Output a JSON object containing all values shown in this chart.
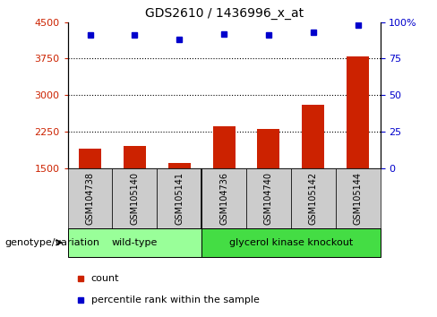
{
  "title": "GDS2610 / 1436996_x_at",
  "samples": [
    "GSM104738",
    "GSM105140",
    "GSM105141",
    "GSM104736",
    "GSM104740",
    "GSM105142",
    "GSM105144"
  ],
  "counts": [
    1900,
    1950,
    1600,
    2350,
    2300,
    2800,
    3800
  ],
  "percentiles": [
    91,
    91,
    88,
    92,
    91,
    93,
    98
  ],
  "ylim_left": [
    1500,
    4500
  ],
  "ylim_right": [
    0,
    100
  ],
  "yticks_left": [
    1500,
    2250,
    3000,
    3750,
    4500
  ],
  "yticks_right": [
    0,
    25,
    50,
    75,
    100
  ],
  "bar_color": "#cc2200",
  "dot_color": "#0000cc",
  "bg_color": "#ffffff",
  "label_box_color": "#cccccc",
  "wt_group_count": 3,
  "ko_group_count": 4,
  "wt_label": "wild-type",
  "ko_label": "glycerol kinase knockout",
  "wt_color": "#99ff99",
  "ko_color": "#44dd44",
  "legend_count_label": "count",
  "legend_pct_label": "percentile rank within the sample",
  "genotype_label": "genotype/variation"
}
